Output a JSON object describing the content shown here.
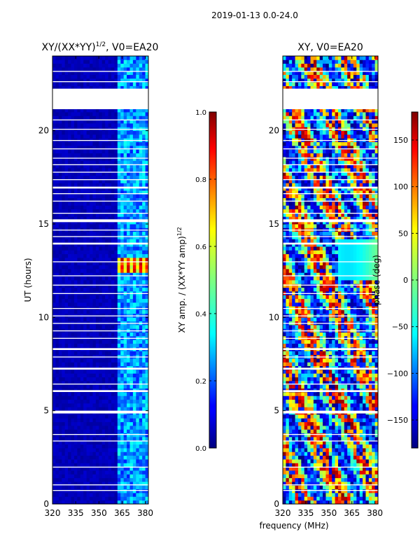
{
  "suptitle": "2019-01-13 0.0-24.0",
  "xlabel_shared": "frequency (MHz)",
  "colors": {
    "background": "#ffffff",
    "dark_blue": "#000080",
    "frame": "#000000",
    "jet": [
      "#00007f",
      "#0000ff",
      "#007fff",
      "#00ffff",
      "#7fff7f",
      "#ffff00",
      "#ff7f00",
      "#ff0000",
      "#7f0000"
    ]
  },
  "chart_data": [
    {
      "type": "heatmap",
      "name": "amplitude",
      "title": "XY/(XX*YY)",
      "title_sup": "1/2",
      "title_suffix": ", V0=EA20",
      "xlabel": "",
      "ylabel": "UT (hours)",
      "xlim": [
        320,
        382
      ],
      "ylim": [
        0,
        24
      ],
      "xticks": [
        320,
        335,
        350,
        365,
        380
      ],
      "yticks": [
        0,
        5,
        10,
        15,
        20
      ],
      "colorbar": {
        "label": "XY amp. / (XX*YY amp)",
        "label_sup": "1/2",
        "range": [
          0.0,
          1.0
        ],
        "ticks": [
          "0.0",
          "0.2",
          "0.4",
          "0.6",
          "0.8",
          "1.0"
        ],
        "tick_values": [
          0.0,
          0.2,
          0.4,
          0.6,
          0.8,
          1.0
        ]
      },
      "flagged_time_ranges_hours": [
        [
          4.85,
          5.0
        ],
        [
          15.1,
          15.25
        ],
        [
          16.9,
          17.0
        ],
        [
          21.15,
          22.25
        ],
        [
          0.7,
          0.75
        ],
        [
          1.0,
          1.05
        ],
        [
          1.95,
          2.0
        ],
        [
          3.35,
          3.4
        ],
        [
          3.7,
          3.75
        ],
        [
          6.0,
          6.1
        ],
        [
          6.4,
          6.45
        ],
        [
          7.2,
          7.3
        ],
        [
          7.85,
          7.9
        ],
        [
          8.25,
          8.35
        ],
        [
          8.85,
          8.9
        ],
        [
          9.25,
          9.3
        ],
        [
          9.65,
          9.7
        ],
        [
          10.05,
          10.1
        ],
        [
          10.45,
          10.5
        ],
        [
          11.25,
          11.3
        ],
        [
          11.7,
          11.75
        ],
        [
          12.2,
          12.25
        ],
        [
          12.95,
          13.0
        ],
        [
          13.9,
          14.0
        ],
        [
          14.3,
          14.35
        ],
        [
          14.65,
          14.7
        ],
        [
          15.55,
          15.6
        ],
        [
          16.2,
          16.25
        ],
        [
          16.6,
          16.65
        ],
        [
          17.35,
          17.4
        ],
        [
          17.75,
          17.8
        ],
        [
          18.15,
          18.2
        ],
        [
          18.5,
          18.55
        ],
        [
          19.0,
          19.05
        ],
        [
          19.45,
          19.5
        ],
        [
          20.05,
          20.1
        ],
        [
          20.55,
          20.6
        ],
        [
          22.6,
          22.65
        ],
        [
          23.15,
          23.2
        ]
      ],
      "features": [
        {
          "desc": "low amplitude background",
          "value": 0.03
        },
        {
          "desc": "RFI band 362-382 MHz",
          "freq_range": [
            362,
            382
          ],
          "value": 0.25
        },
        {
          "desc": "high amplitude burst",
          "freq_range": [
            363,
            381
          ],
          "time_range": [
            12.4,
            13.2
          ],
          "value": 0.8
        },
        {
          "desc": "burst edge",
          "freq_range": [
            363,
            381
          ],
          "time_range": [
            11.9,
            12.0
          ],
          "value": 0.45
        }
      ]
    },
    {
      "type": "heatmap",
      "name": "phase",
      "title": "XY, V0=EA20",
      "xlabel": "frequency (MHz)",
      "ylabel": "",
      "xlim": [
        320,
        382
      ],
      "ylim": [
        0,
        24
      ],
      "xticks": [
        320,
        335,
        350,
        365,
        380
      ],
      "yticks": [
        0,
        5,
        10,
        15,
        20
      ],
      "colorbar": {
        "label": "phase (deg)",
        "range": [
          -180,
          180
        ],
        "ticks": [
          "150",
          "100",
          "50",
          "0",
          "−50",
          "−100",
          "−150"
        ],
        "tick_values": [
          150,
          100,
          50,
          0,
          -50,
          -100,
          -150
        ]
      },
      "flagged_time_ranges_hours": [
        [
          4.85,
          5.0
        ],
        [
          15.1,
          15.25
        ],
        [
          16.9,
          17.0
        ],
        [
          21.15,
          22.25
        ],
        [
          0.7,
          0.75
        ],
        [
          1.0,
          1.05
        ],
        [
          1.95,
          2.0
        ],
        [
          3.35,
          3.4
        ],
        [
          3.7,
          3.75
        ],
        [
          6.0,
          6.1
        ],
        [
          6.4,
          6.45
        ],
        [
          7.2,
          7.3
        ],
        [
          7.85,
          7.9
        ],
        [
          8.25,
          8.35
        ],
        [
          8.85,
          8.9
        ],
        [
          9.25,
          9.3
        ],
        [
          9.65,
          9.7
        ],
        [
          10.05,
          10.1
        ],
        [
          10.45,
          10.5
        ],
        [
          11.25,
          11.3
        ],
        [
          11.7,
          11.75
        ],
        [
          12.2,
          12.25
        ],
        [
          12.95,
          13.0
        ],
        [
          13.9,
          14.0
        ],
        [
          14.3,
          14.35
        ],
        [
          14.65,
          14.7
        ],
        [
          15.55,
          15.6
        ],
        [
          16.2,
          16.25
        ],
        [
          16.6,
          16.65
        ],
        [
          17.35,
          17.4
        ],
        [
          17.75,
          17.8
        ],
        [
          18.15,
          18.2
        ],
        [
          18.5,
          18.55
        ],
        [
          19.0,
          19.05
        ],
        [
          19.45,
          19.5
        ],
        [
          20.05,
          20.1
        ],
        [
          20.55,
          20.6
        ],
        [
          22.6,
          22.65
        ],
        [
          23.15,
          23.2
        ]
      ],
      "features": [
        {
          "desc": "noisy phase across band"
        },
        {
          "desc": "smoother phase segments",
          "freq_range": [
            355,
            382
          ],
          "time_range": [
            12.0,
            14.0
          ]
        }
      ]
    }
  ]
}
